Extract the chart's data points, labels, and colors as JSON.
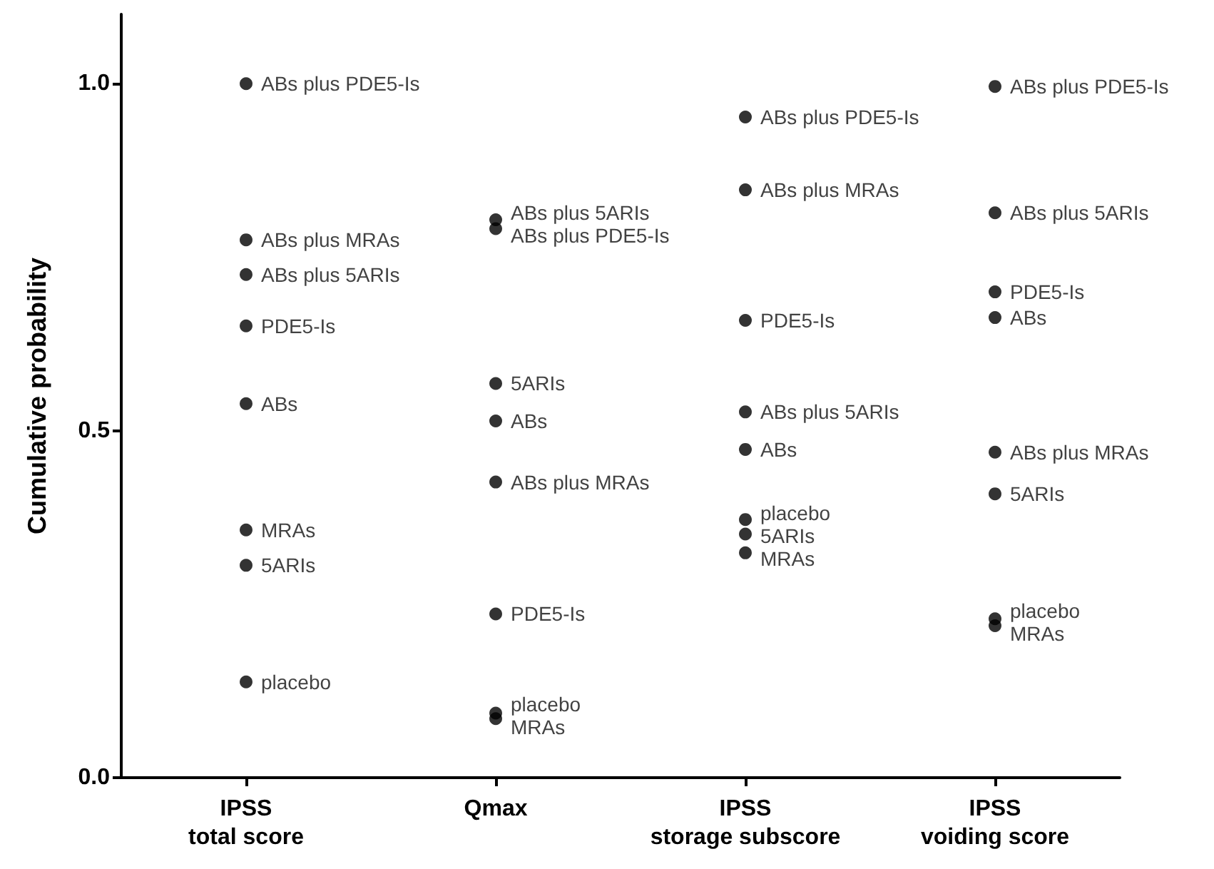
{
  "chart_data": {
    "type": "scatter",
    "ylabel": "Cumulative probability",
    "categories": [
      "IPSS\ntotal score",
      "Qmax",
      "IPSS\nstorage subscore",
      "IPSS\nvoiding score"
    ],
    "series": [
      {
        "name": "ABs plus PDE5-Is",
        "color": "#000000",
        "values": [
          1.0,
          0.791,
          0.952,
          0.996
        ]
      },
      {
        "name": "ABs plus MRAs",
        "color": "#000000",
        "values": [
          0.775,
          0.426,
          0.847,
          0.469
        ]
      },
      {
        "name": "ABs plus 5ARIs",
        "color": "#000000",
        "values": [
          0.725,
          0.804,
          0.527,
          0.814
        ]
      },
      {
        "name": "PDE5-Is",
        "color": "#000000",
        "values": [
          0.651,
          0.236,
          0.659,
          0.7
        ]
      },
      {
        "name": "ABs",
        "color": "#000000",
        "values": [
          0.539,
          0.514,
          0.473,
          0.663
        ]
      },
      {
        "name": "MRAs",
        "color": "#000000",
        "values": [
          0.357,
          0.085,
          0.324,
          0.219
        ]
      },
      {
        "name": "5ARIs",
        "color": "#000000",
        "values": [
          0.306,
          0.568,
          0.351,
          0.409
        ]
      },
      {
        "name": "placebo",
        "color": "#000000",
        "values": [
          0.138,
          0.093,
          0.372,
          0.229
        ]
      }
    ],
    "ylim": [
      0,
      1.1
    ],
    "yticks": [
      {
        "value": 0,
        "label": "0.0"
      },
      {
        "value": 0.5,
        "label": "0.5"
      },
      {
        "value": 1,
        "label": "1.0"
      }
    ],
    "grid": false,
    "legend": false,
    "marker": "circle"
  }
}
